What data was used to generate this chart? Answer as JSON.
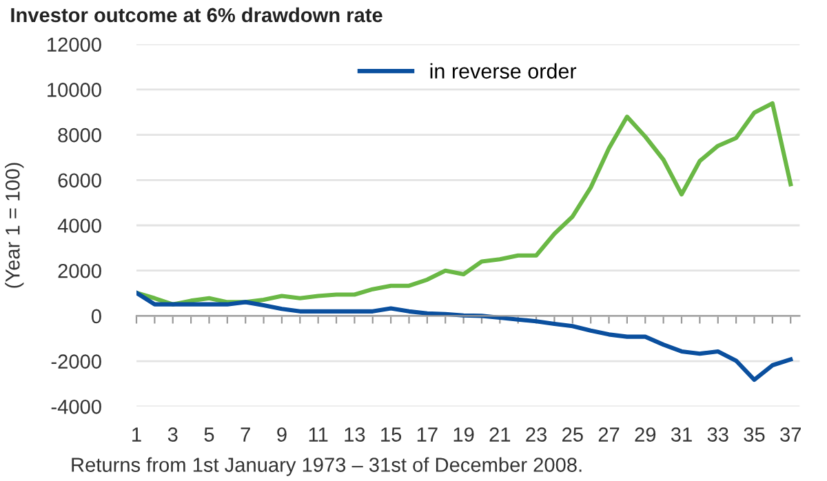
{
  "chart_data": {
    "type": "line",
    "title": "Investor outcome at 6% drawdown rate",
    "ylabel": "(Year 1 = 100)",
    "x": [
      1,
      2,
      3,
      4,
      5,
      6,
      7,
      8,
      9,
      10,
      11,
      12,
      13,
      14,
      15,
      16,
      17,
      18,
      19,
      20,
      21,
      22,
      23,
      24,
      25,
      26,
      27,
      28,
      29,
      30,
      31,
      32,
      33,
      34,
      35,
      36,
      37
    ],
    "series": [
      {
        "color": "#6ab845",
        "values": [
          1020,
          780,
          510,
          670,
          780,
          610,
          610,
          710,
          880,
          780,
          880,
          940,
          940,
          1180,
          1330,
          1330,
          1600,
          2000,
          1840,
          2400,
          2500,
          2670,
          2670,
          3630,
          4390,
          5670,
          7400,
          8800,
          7920,
          6900,
          5370,
          6840,
          7510,
          7860,
          8980,
          9390,
          5820
        ]
      },
      {
        "name": "in reverse order",
        "color": "#0a4f9e",
        "values": [
          1020,
          510,
          510,
          510,
          510,
          510,
          610,
          470,
          310,
          200,
          200,
          200,
          200,
          200,
          330,
          200,
          110,
          80,
          20,
          0,
          -80,
          -160,
          -240,
          -350,
          -450,
          -650,
          -820,
          -920,
          -920,
          -1270,
          -1570,
          -1670,
          -1570,
          -1980,
          -2820,
          -2180,
          -1920
        ]
      }
    ],
    "xlim": [
      1,
      37.5
    ],
    "xticks": [
      1,
      {
        "value": 2,
        "label": null
      },
      3,
      {
        "value": 4,
        "label": null
      },
      5,
      {
        "value": 6,
        "label": null
      },
      7,
      {
        "value": 8,
        "label": null
      },
      9,
      {
        "value": 10,
        "label": null
      },
      11,
      {
        "value": 12,
        "label": null
      },
      13,
      {
        "value": 14,
        "label": null
      },
      15,
      {
        "value": 16,
        "label": null
      },
      17,
      {
        "value": 18,
        "label": null
      },
      19,
      {
        "value": 20,
        "label": null
      },
      21,
      {
        "value": 22,
        "label": null
      },
      23,
      {
        "value": 24,
        "label": null
      },
      25,
      {
        "value": 26,
        "label": null
      },
      27,
      {
        "value": 28,
        "label": null
      },
      29,
      {
        "value": 30,
        "label": null
      },
      31,
      {
        "value": 32,
        "label": null
      },
      33,
      {
        "value": 34,
        "label": null
      },
      35,
      {
        "value": 36,
        "label": null
      },
      37
    ],
    "ylim": [
      -4000,
      12000
    ],
    "yticks": [
      -4000,
      -2000,
      0,
      2000,
      4000,
      6000,
      8000,
      10000,
      12000
    ],
    "grid": "y",
    "legend": "top",
    "marker": "none",
    "line_style": "solid",
    "annotations": [
      "Returns from 1st January 1973 – 31st of December 2008."
    ]
  }
}
